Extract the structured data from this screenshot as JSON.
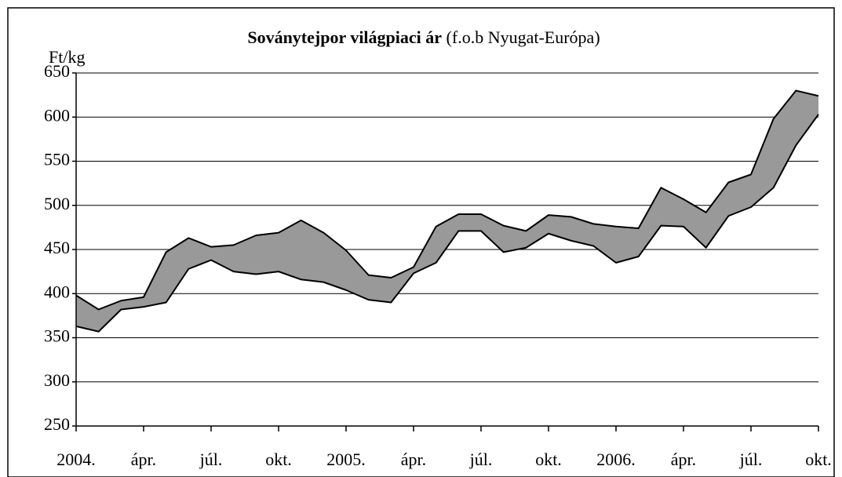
{
  "chart_data": {
    "type": "band",
    "title": "Soványtejpor világpiaci ár",
    "subtitle": "(f.o.b Nyugat-Európa)",
    "y_label": "Ft/kg",
    "categories": [
      "2004.",
      null,
      null,
      "ápr.",
      null,
      null,
      "júl.",
      null,
      null,
      "okt.",
      null,
      null,
      "2005.",
      null,
      null,
      "ápr.",
      null,
      null,
      "júl.",
      null,
      null,
      "okt.",
      null,
      null,
      "2006.",
      null,
      null,
      "ápr.",
      null,
      null,
      "júl.",
      null,
      null,
      "okt."
    ],
    "series": [
      {
        "color": "#000000",
        "values": [
          398,
          382,
          392,
          396,
          447,
          463,
          453,
          455,
          466,
          469,
          483,
          469,
          449,
          421,
          418,
          430,
          476,
          490,
          490,
          477,
          471,
          489,
          487,
          479,
          476,
          474,
          520,
          507,
          492,
          526,
          535,
          598,
          630,
          624
        ]
      },
      {
        "color": "#000000",
        "values": [
          363,
          357,
          382,
          385,
          390,
          428,
          438,
          425,
          422,
          425,
          416,
          413,
          404,
          393,
          390,
          423,
          435,
          471,
          471,
          447,
          452,
          468,
          460,
          454,
          435,
          442,
          477,
          476,
          452,
          488,
          498,
          520,
          568,
          603
        ]
      }
    ],
    "band_color": "#999999",
    "ylim": [
      250,
      650
    ],
    "yticks": [
      250,
      300,
      350,
      400,
      450,
      500,
      550,
      600,
      650
    ],
    "grid": true
  }
}
